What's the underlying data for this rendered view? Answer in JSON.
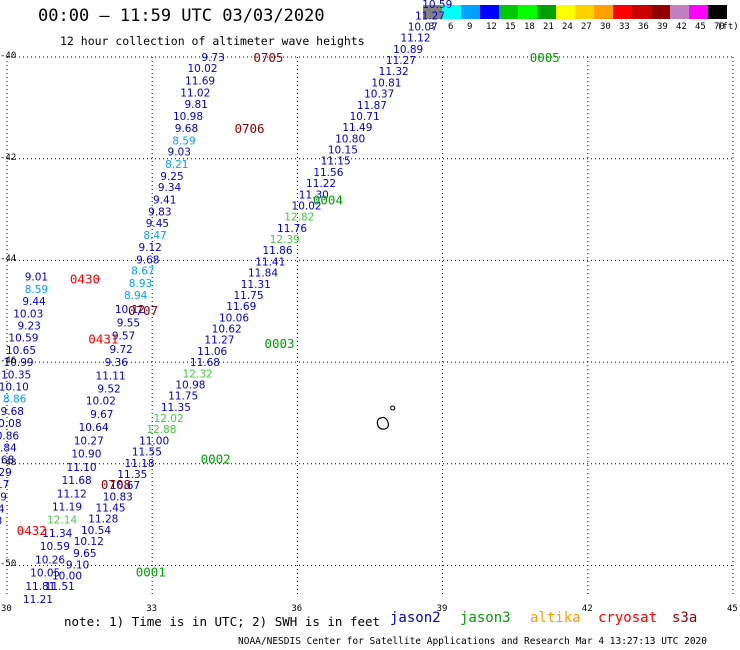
{
  "title": "00:00 — 11:59 UTC 03/03/2020",
  "subtitle": "12 hour collection of altimeter wave heights",
  "scale": {
    "colors": [
      "#808080",
      "#00ffff",
      "#00a0ff",
      "#0000ff",
      "#00c800",
      "#00ff00",
      "#00a000",
      "#ffff00",
      "#ffd000",
      "#ffa000",
      "#ff0000",
      "#c80000",
      "#900000",
      "#c080c0",
      "#ff00ff",
      "#000000"
    ],
    "labels": [
      "3",
      "6",
      "9",
      "12",
      "15",
      "18",
      "21",
      "24",
      "27",
      "30",
      "33",
      "36",
      "39",
      "42",
      "45",
      "70"
    ],
    "unit": "(ft)"
  },
  "axes": {
    "x_ticks": [
      "30",
      "33",
      "36",
      "39",
      "42",
      "45"
    ],
    "y_ticks": [
      "-40",
      "-42",
      "-44",
      "-46",
      "-48",
      "-50"
    ]
  },
  "note": "note:  1) Time is in UTC;  2) SWH is in feet",
  "legend": [
    {
      "name": "jason2",
      "color": "#0000c8"
    },
    {
      "name": "jason3",
      "color": "#00a000"
    },
    {
      "name": "altika",
      "color": "#ffa000"
    },
    {
      "name": "cryosat",
      "color": "#ff0000"
    },
    {
      "name": "s3a",
      "color": "#900000"
    }
  ],
  "footer": "NOAA/NESDIS Center for Satellite Applications and Research    Mar  4 13:27:13 UTC 2020",
  "track_labels": [
    {
      "text": "0705",
      "color": "#900000",
      "lon": 35.09,
      "lat": -40.0
    },
    {
      "text": "0706",
      "color": "#900000",
      "lon": 34.7,
      "lat": -41.4
    },
    {
      "text": "0707",
      "color": "#900000",
      "lon": 32.5,
      "lat": -44.98
    },
    {
      "text": "0708",
      "color": "#900000",
      "lon": 31.94,
      "lat": -48.4
    },
    {
      "text": "0430",
      "color": "#ff0000",
      "lon": 31.3,
      "lat": -44.36
    },
    {
      "text": "0431",
      "color": "#ff0000",
      "lon": 31.68,
      "lat": -45.54
    },
    {
      "text": "0432",
      "color": "#ff0000",
      "lon": 30.2,
      "lat": -49.3
    },
    {
      "text": "0005",
      "color": "#00a000",
      "lon": 40.8,
      "lat": -40.0
    },
    {
      "text": "0004",
      "color": "#00a000",
      "lon": 36.32,
      "lat": -42.8
    },
    {
      "text": "0003",
      "color": "#00a000",
      "lon": 35.32,
      "lat": -45.62
    },
    {
      "text": "0002",
      "color": "#00a000",
      "lon": 34.0,
      "lat": -47.9
    },
    {
      "text": "0001",
      "color": "#00a000",
      "lon": 32.66,
      "lat": -50.12
    }
  ],
  "obs": [
    {
      "v": "9.73",
      "c": "#0000c8",
      "lon": 34.5,
      "lat": -40.0
    },
    {
      "v": "10.02",
      "c": "#0000c8",
      "lon": 34.35,
      "lat": -40.22
    },
    {
      "v": "11.69",
      "c": "#0000c8",
      "lon": 34.3,
      "lat": -40.46
    },
    {
      "v": "11.02",
      "c": "#0000c8",
      "lon": 34.2,
      "lat": -40.7
    },
    {
      "v": "9.81",
      "c": "#0000c8",
      "lon": 34.15,
      "lat": -40.92
    },
    {
      "v": "10.98",
      "c": "#0000c8",
      "lon": 34.05,
      "lat": -41.16
    },
    {
      "v": "9.68",
      "c": "#0000c8",
      "lon": 33.95,
      "lat": -41.4
    },
    {
      "v": "8.59",
      "c": "#00a0ff",
      "lon": 33.9,
      "lat": -41.64
    },
    {
      "v": "9.03",
      "c": "#0000c8",
      "lon": 33.8,
      "lat": -41.86
    },
    {
      "v": "8.21",
      "c": "#00a0ff",
      "lon": 33.75,
      "lat": -42.1
    },
    {
      "v": "9.25",
      "c": "#0000c8",
      "lon": 33.65,
      "lat": -42.34
    },
    {
      "v": "9.34",
      "c": "#0000c8",
      "lon": 33.6,
      "lat": -42.56
    },
    {
      "v": "9.41",
      "c": "#0000c8",
      "lon": 33.5,
      "lat": -42.8
    },
    {
      "v": "9.83",
      "c": "#0000c8",
      "lon": 33.4,
      "lat": -43.04
    },
    {
      "v": "9.45",
      "c": "#0000c8",
      "lon": 33.35,
      "lat": -43.26
    },
    {
      "v": "8.47",
      "c": "#00a0ff",
      "lon": 33.3,
      "lat": -43.5
    },
    {
      "v": "9.12",
      "c": "#0000c8",
      "lon": 33.2,
      "lat": -43.74
    },
    {
      "v": "9.68",
      "c": "#0000c8",
      "lon": 33.15,
      "lat": -43.98
    },
    {
      "v": "8.67",
      "c": "#00a0ff",
      "lon": 33.05,
      "lat": -44.2
    },
    {
      "v": "8.93",
      "c": "#00a0ff",
      "lon": 33.0,
      "lat": -44.44
    },
    {
      "v": "8.94",
      "c": "#00a0ff",
      "lon": 32.9,
      "lat": -44.68
    },
    {
      "v": "10.12",
      "c": "#0000c8",
      "lon": 32.85,
      "lat": -44.96
    },
    {
      "v": "9.55",
      "c": "#0000c8",
      "lon": 32.75,
      "lat": -45.22
    },
    {
      "v": "9.57",
      "c": "#0000c8",
      "lon": 32.65,
      "lat": -45.48
    },
    {
      "v": "9.72",
      "c": "#0000c8",
      "lon": 32.6,
      "lat": -45.74
    },
    {
      "v": "9.36",
      "c": "#0000c8",
      "lon": 32.5,
      "lat": -46.0
    },
    {
      "v": "11.11",
      "c": "#0000c8",
      "lon": 32.45,
      "lat": -46.26
    },
    {
      "v": "9.52",
      "c": "#0000c8",
      "lon": 32.35,
      "lat": -46.52
    },
    {
      "v": "10.02",
      "c": "#0000c8",
      "lon": 32.25,
      "lat": -46.76
    },
    {
      "v": "9.67",
      "c": "#0000c8",
      "lon": 32.2,
      "lat": -47.02
    },
    {
      "v": "10.64",
      "c": "#0000c8",
      "lon": 32.1,
      "lat": -47.28
    },
    {
      "v": "10.27",
      "c": "#0000c8",
      "lon": 32.0,
      "lat": -47.54
    },
    {
      "v": "10.90",
      "c": "#0000c8",
      "lon": 31.95,
      "lat": -47.8
    },
    {
      "v": "11.10",
      "c": "#0000c8",
      "lon": 31.85,
      "lat": -48.06
    },
    {
      "v": "11.68",
      "c": "#0000c8",
      "lon": 31.75,
      "lat": -48.32
    },
    {
      "v": "11.12",
      "c": "#0000c8",
      "lon": 31.65,
      "lat": -48.58
    },
    {
      "v": "11.19",
      "c": "#0000c8",
      "lon": 31.55,
      "lat": -48.84
    },
    {
      "v": "12.14",
      "c": "#44cc44",
      "lon": 31.45,
      "lat": -49.1
    },
    {
      "v": "11.34",
      "c": "#0000c8",
      "lon": 31.35,
      "lat": -49.36
    },
    {
      "v": "10.59",
      "c": "#0000c8",
      "lon": 31.3,
      "lat": -49.62
    },
    {
      "v": "10.26",
      "c": "#0000c8",
      "lon": 31.2,
      "lat": -49.88
    },
    {
      "v": "10.05",
      "c": "#0000c8",
      "lon": 31.1,
      "lat": -50.14
    },
    {
      "v": "11.81",
      "c": "#0000c8",
      "lon": 31.0,
      "lat": -50.4
    },
    {
      "v": "11.21",
      "c": "#0000c8",
      "lon": 30.95,
      "lat": -50.66
    },
    {
      "v": "11.51",
      "c": "#0000c8",
      "lon": 31.4,
      "lat": -50.4
    },
    {
      "v": "10.00",
      "c": "#0000c8",
      "lon": 31.55,
      "lat": -50.2
    },
    {
      "v": "9.10",
      "c": "#0000c8",
      "lon": 31.7,
      "lat": -49.98
    },
    {
      "v": "9.65",
      "c": "#0000c8",
      "lon": 31.85,
      "lat": -49.75
    },
    {
      "v": "10.12",
      "c": "#0000c8",
      "lon": 32.0,
      "lat": -49.52
    },
    {
      "v": "10.54",
      "c": "#0000c8",
      "lon": 32.15,
      "lat": -49.3
    },
    {
      "v": "11.28",
      "c": "#0000c8",
      "lon": 32.3,
      "lat": -49.08
    },
    {
      "v": "11.45",
      "c": "#0000c8",
      "lon": 32.45,
      "lat": -48.86
    },
    {
      "v": "10.83",
      "c": "#0000c8",
      "lon": 32.6,
      "lat": -48.64
    },
    {
      "v": "10.67",
      "c": "#0000c8",
      "lon": 32.75,
      "lat": -48.42
    },
    {
      "v": "11.35",
      "c": "#0000c8",
      "lon": 32.9,
      "lat": -48.2
    },
    {
      "v": "11.18",
      "c": "#0000c8",
      "lon": 33.05,
      "lat": -47.98
    },
    {
      "v": "11.55",
      "c": "#0000c8",
      "lon": 33.2,
      "lat": -47.76
    },
    {
      "v": "11.00",
      "c": "#0000c8",
      "lon": 33.35,
      "lat": -47.54
    },
    {
      "v": "12.88",
      "c": "#44cc44",
      "lon": 33.5,
      "lat": -47.32
    },
    {
      "v": "12.02",
      "c": "#44cc44",
      "lon": 33.65,
      "lat": -47.1
    },
    {
      "v": "11.35",
      "c": "#0000c8",
      "lon": 33.8,
      "lat": -46.88
    },
    {
      "v": "11.75",
      "c": "#0000c8",
      "lon": 33.95,
      "lat": -46.66
    },
    {
      "v": "10.98",
      "c": "#0000c8",
      "lon": 34.1,
      "lat": -46.44
    },
    {
      "v": "12.32",
      "c": "#44cc44",
      "lon": 34.25,
      "lat": -46.22
    },
    {
      "v": "11.68",
      "c": "#0000c8",
      "lon": 34.4,
      "lat": -46.0
    },
    {
      "v": "11.06",
      "c": "#0000c8",
      "lon": 34.55,
      "lat": -45.78
    },
    {
      "v": "11.27",
      "c": "#0000c8",
      "lon": 34.7,
      "lat": -45.56
    },
    {
      "v": "10.62",
      "c": "#0000c8",
      "lon": 34.85,
      "lat": -45.34
    },
    {
      "v": "10.06",
      "c": "#0000c8",
      "lon": 35.0,
      "lat": -45.12
    },
    {
      "v": "11.69",
      "c": "#0000c8",
      "lon": 35.15,
      "lat": -44.9
    },
    {
      "v": "11.75",
      "c": "#0000c8",
      "lon": 35.3,
      "lat": -44.68
    },
    {
      "v": "11.31",
      "c": "#0000c8",
      "lon": 35.45,
      "lat": -44.46
    },
    {
      "v": "11.84",
      "c": "#0000c8",
      "lon": 35.6,
      "lat": -44.24
    },
    {
      "v": "11.41",
      "c": "#0000c8",
      "lon": 35.75,
      "lat": -44.02
    },
    {
      "v": "11.86",
      "c": "#0000c8",
      "lon": 35.9,
      "lat": -43.8
    },
    {
      "v": "12.39",
      "c": "#44cc44",
      "lon": 36.05,
      "lat": -43.58
    },
    {
      "v": "11.76",
      "c": "#0000c8",
      "lon": 36.2,
      "lat": -43.36
    },
    {
      "v": "12.82",
      "c": "#44cc44",
      "lon": 36.35,
      "lat": -43.14
    },
    {
      "v": "10.02",
      "c": "#0000c8",
      "lon": 36.5,
      "lat": -42.92
    },
    {
      "v": "11.30",
      "c": "#0000c8",
      "lon": 36.65,
      "lat": -42.7
    },
    {
      "v": "11.22",
      "c": "#0000c8",
      "lon": 36.8,
      "lat": -42.48
    },
    {
      "v": "11.56",
      "c": "#0000c8",
      "lon": 36.95,
      "lat": -42.26
    },
    {
      "v": "11.15",
      "c": "#0000c8",
      "lon": 37.1,
      "lat": -42.04
    },
    {
      "v": "10.15",
      "c": "#0000c8",
      "lon": 37.25,
      "lat": -41.82
    },
    {
      "v": "10.80",
      "c": "#0000c8",
      "lon": 37.4,
      "lat": -41.6
    },
    {
      "v": "11.49",
      "c": "#0000c8",
      "lon": 37.55,
      "lat": -41.38
    },
    {
      "v": "10.71",
      "c": "#0000c8",
      "lon": 37.7,
      "lat": -41.16
    },
    {
      "v": "11.87",
      "c": "#0000c8",
      "lon": 37.85,
      "lat": -40.94
    },
    {
      "v": "10.37",
      "c": "#0000c8",
      "lon": 38.0,
      "lat": -40.72
    },
    {
      "v": "10.81",
      "c": "#0000c8",
      "lon": 38.15,
      "lat": -40.5
    },
    {
      "v": "11.32",
      "c": "#0000c8",
      "lon": 38.3,
      "lat": -40.28
    },
    {
      "v": "11.27",
      "c": "#0000c8",
      "lon": 38.45,
      "lat": -40.06
    },
    {
      "v": "10.89",
      "c": "#0000c8",
      "lon": 38.6,
      "lat": -39.84
    },
    {
      "v": "11.12",
      "c": "#0000c8",
      "lon": 38.75,
      "lat": -39.62
    },
    {
      "v": "10.07",
      "c": "#0000c8",
      "lon": 38.9,
      "lat": -39.4
    },
    {
      "v": "11.27",
      "c": "#0000c8",
      "lon": 39.05,
      "lat": -39.18
    },
    {
      "v": "10.59",
      "c": "#0000c8",
      "lon": 39.2,
      "lat": -38.96
    },
    {
      "v": "11.70",
      "c": "#0000c8",
      "lon": 39.35,
      "lat": -38.74
    },
    {
      "v": "11.36",
      "c": "#0000c8",
      "lon": 39.5,
      "lat": -38.52
    },
    {
      "v": "10.50",
      "c": "#0000c8",
      "lon": 39.65,
      "lat": -38.3
    },
    {
      "v": "9.01",
      "c": "#0000c8",
      "lon": 30.85,
      "lat": -44.32
    },
    {
      "v": "8.59",
      "c": "#00a0ff",
      "lon": 30.85,
      "lat": -44.56
    },
    {
      "v": "9.44",
      "c": "#0000c8",
      "lon": 30.8,
      "lat": -44.8
    },
    {
      "v": "10.03",
      "c": "#0000c8",
      "lon": 30.75,
      "lat": -45.04
    },
    {
      "v": "9.23",
      "c": "#0000c8",
      "lon": 30.7,
      "lat": -45.28
    },
    {
      "v": "10.59",
      "c": "#0000c8",
      "lon": 30.65,
      "lat": -45.52
    },
    {
      "v": "10.65",
      "c": "#0000c8",
      "lon": 30.6,
      "lat": -45.76
    },
    {
      "v": "10.99",
      "c": "#0000c8",
      "lon": 30.55,
      "lat": -46.0
    },
    {
      "v": "10.35",
      "c": "#0000c8",
      "lon": 30.5,
      "lat": -46.24
    },
    {
      "v": "10.10",
      "c": "#0000c8",
      "lon": 30.45,
      "lat": -46.48
    },
    {
      "v": "8.86",
      "c": "#00a0ff",
      "lon": 30.4,
      "lat": -46.72
    },
    {
      "v": "9.68",
      "c": "#0000c8",
      "lon": 30.35,
      "lat": -46.96
    },
    {
      "v": "10.08",
      "c": "#0000c8",
      "lon": 30.3,
      "lat": -47.2
    },
    {
      "v": "10.86",
      "c": "#0000c8",
      "lon": 30.25,
      "lat": -47.44
    },
    {
      "v": "11.84",
      "c": "#0000c8",
      "lon": 30.2,
      "lat": -47.68
    },
    {
      "v": "11.68",
      "c": "#0000c8",
      "lon": 30.15,
      "lat": -47.92
    },
    {
      "v": "11.29",
      "c": "#0000c8",
      "lon": 30.1,
      "lat": -48.16
    },
    {
      "v": "11.17",
      "c": "#0000c8",
      "lon": 30.05,
      "lat": -48.4
    },
    {
      "v": "9.59",
      "c": "#0000c8",
      "lon": 30.0,
      "lat": -48.64
    },
    {
      "v": "10.34",
      "c": "#0000c8",
      "lon": 29.95,
      "lat": -48.88
    },
    {
      "v": "9.68",
      "c": "#0000c8",
      "lon": 29.9,
      "lat": -49.12
    },
    {
      "v": "10.08",
      "c": "#0000c8",
      "lon": 29.85,
      "lat": -49.36
    },
    {
      "v": "10.69",
      "c": "#0000c8",
      "lon": 29.8,
      "lat": -49.6
    },
    {
      "v": "10.43",
      "c": "#0000c8",
      "lon": 29.75,
      "lat": -49.84
    },
    {
      "v": "11.27",
      "c": "#0000c8",
      "lon": 29.7,
      "lat": -50.08
    },
    {
      "v": "11.94",
      "c": "#0000c8",
      "lon": 29.65,
      "lat": -50.32
    },
    {
      "v": "12.75",
      "c": "#44cc44",
      "lon": 29.6,
      "lat": -50.56
    }
  ]
}
